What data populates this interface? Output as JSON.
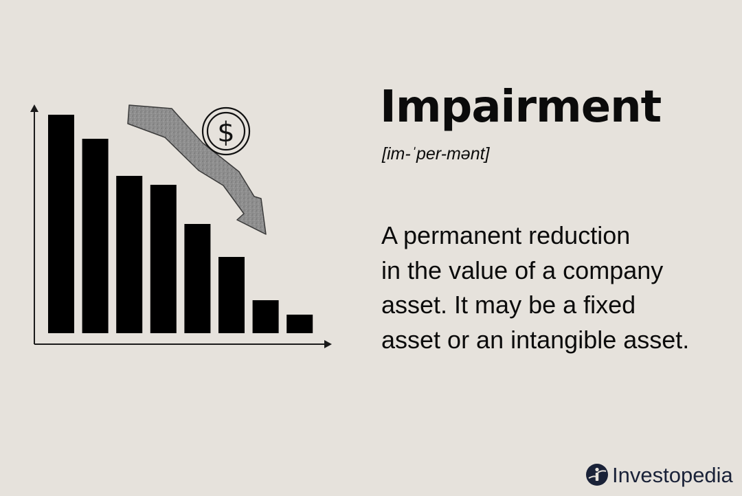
{
  "heading": {
    "term": "Impairment",
    "pronunciation": "[im-ˈper-mənt]"
  },
  "definition": {
    "lines": [
      "A permanent reduction",
      "in the value of a company",
      "asset. It may be a fixed",
      "asset or an intangible asset."
    ]
  },
  "illustration": {
    "bar_levels": [
      1.0,
      0.89,
      0.72,
      0.68,
      0.5,
      0.35,
      0.15,
      0.085
    ],
    "coin_symbol": "$",
    "bar_color": "#000000",
    "arrow_color": "#8e8e8e"
  },
  "brand": {
    "name": "Investopedia",
    "icon": "investopedia-logo-icon",
    "color": "#1a2238"
  },
  "colors": {
    "background": "#e6e2dc",
    "text": "#0b0b0b"
  }
}
